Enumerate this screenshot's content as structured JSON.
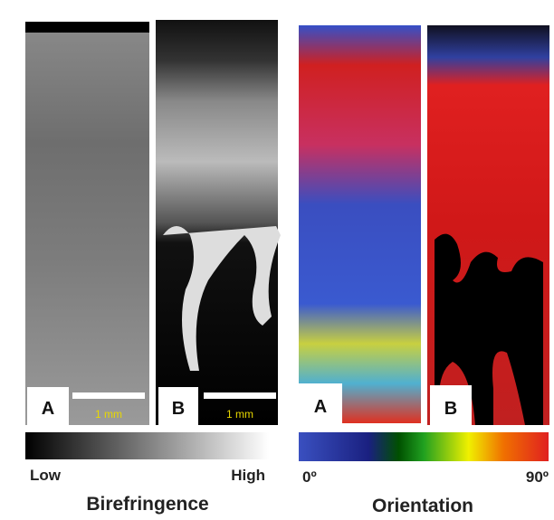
{
  "panels": [
    {
      "label": "A",
      "scale_bar": "1 mm"
    },
    {
      "label": "B",
      "scale_bar": "1 mm"
    },
    {
      "label": "A"
    },
    {
      "label": "B"
    }
  ],
  "colorbars": [
    {
      "low": "Low",
      "high": "High",
      "title": "Birefringence"
    },
    {
      "low": "0º",
      "high": "90º",
      "title": "Orientation"
    }
  ]
}
